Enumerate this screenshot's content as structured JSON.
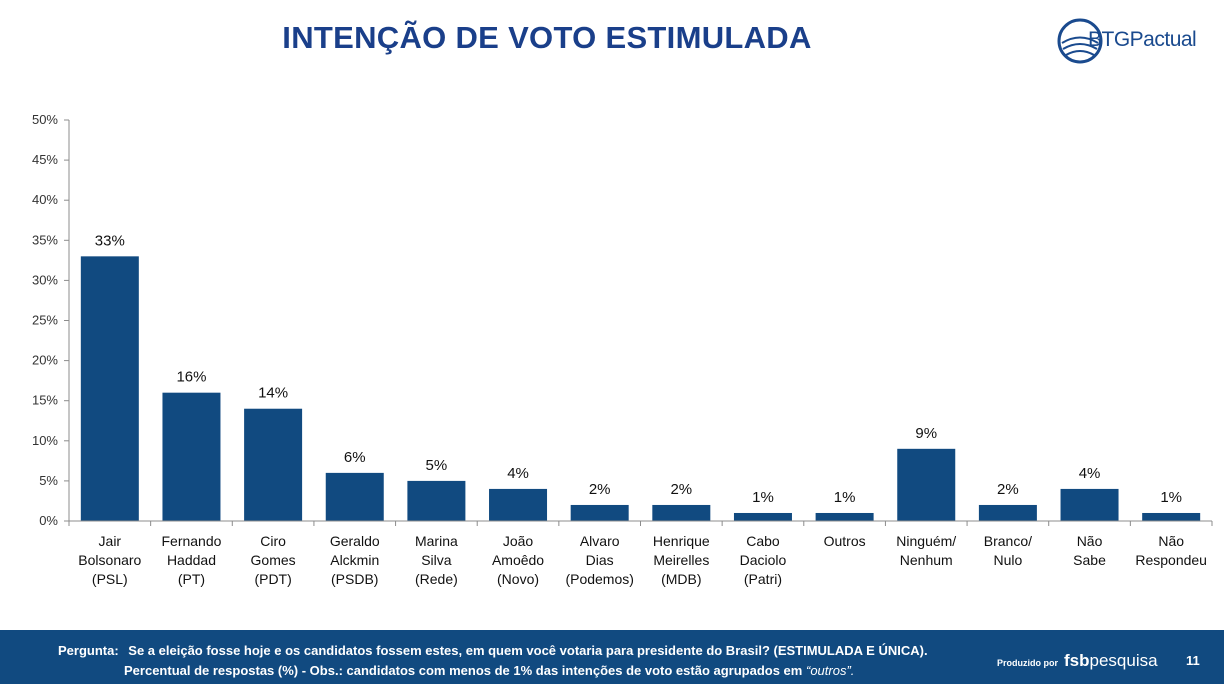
{
  "header": {
    "title": "INTENÇÃO DE VOTO ESTIMULADA",
    "logo_text": "BTGPactual",
    "brand_color": "#114a80"
  },
  "chart_data": {
    "type": "bar",
    "title": "INTENÇÃO DE VOTO ESTIMULADA",
    "xlabel": "",
    "ylabel": "",
    "ylim": [
      0,
      50
    ],
    "yticks": [
      "0%",
      "5%",
      "10%",
      "15%",
      "20%",
      "25%",
      "30%",
      "35%",
      "40%",
      "45%",
      "50%"
    ],
    "grid": false,
    "bar_color": "#114a80",
    "categories": [
      [
        "Jair",
        "Bolsonaro",
        "(PSL)"
      ],
      [
        "Fernando",
        "Haddad",
        "(PT)"
      ],
      [
        "Ciro",
        "Gomes",
        "(PDT)"
      ],
      [
        "Geraldo",
        "Alckmin",
        "(PSDB)"
      ],
      [
        "Marina",
        "Silva",
        "(Rede)"
      ],
      [
        "João",
        "Amoêdo",
        "(Novo)"
      ],
      [
        "Alvaro",
        "Dias",
        "(Podemos)"
      ],
      [
        "Henrique",
        "Meirelles",
        "(MDB)"
      ],
      [
        "Cabo",
        "Daciolo",
        "(Patri)"
      ],
      [
        "Outros"
      ],
      [
        "Ninguém/",
        "Nenhum"
      ],
      [
        "Branco/",
        "Nulo"
      ],
      [
        "Não",
        "Sabe"
      ],
      [
        "Não",
        "Respondeu"
      ]
    ],
    "values": [
      33,
      16,
      14,
      6,
      5,
      4,
      2,
      2,
      1,
      1,
      9,
      2,
      4,
      1
    ],
    "data_labels": [
      "33%",
      "16%",
      "14%",
      "6%",
      "5%",
      "4%",
      "2%",
      "2%",
      "1%",
      "1%",
      "9%",
      "2%",
      "4%",
      "1%"
    ]
  },
  "footer": {
    "question_label": "Pergunta:",
    "question_text": "Se a eleição fosse hoje e os candidatos fossem estes, em quem você votaria para presidente do Brasil? (ESTIMULADA E ÚNICA).",
    "note_text": "Percentual de respostas (%) - Obs.: candidatos com menos de 1% das intenções de voto estão agrupados em",
    "note_quote": "“outros”.",
    "produced_by": "Produzido por",
    "brand_bold": "fsb",
    "brand_rest": "pesquisa",
    "page_number": "11"
  }
}
